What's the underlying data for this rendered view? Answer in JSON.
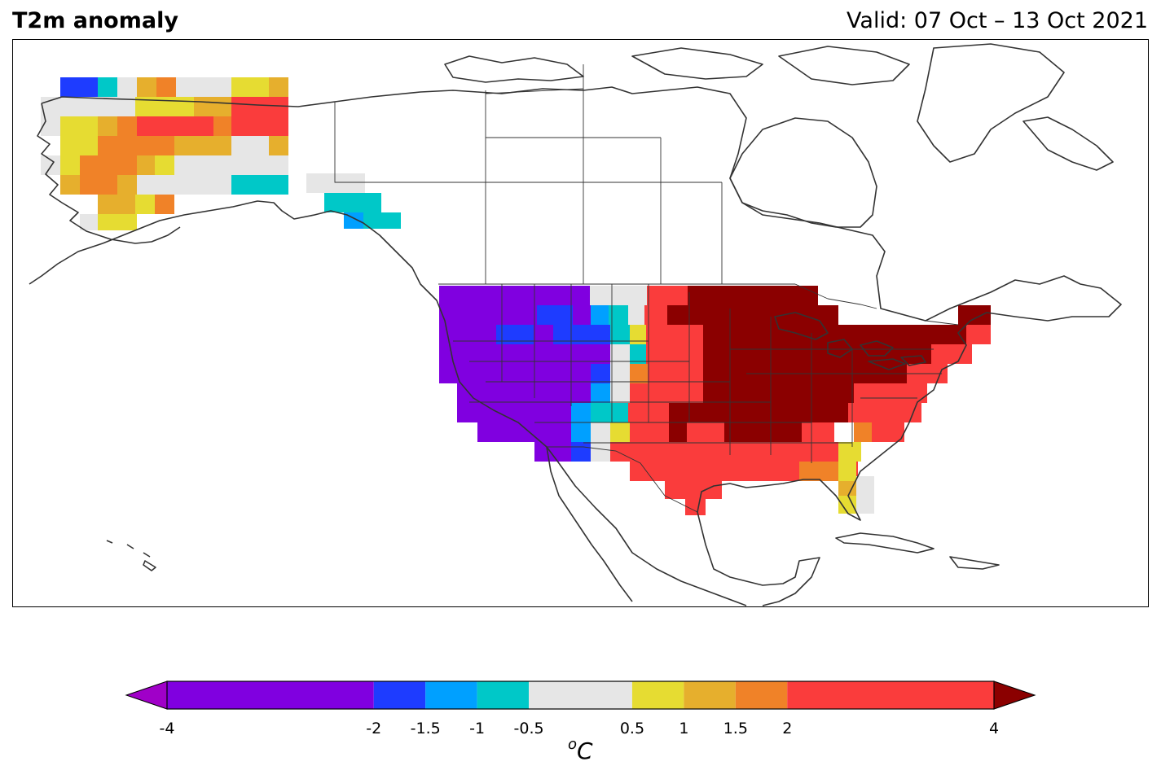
{
  "header": {
    "title": "T2m anomaly",
    "valid": "Valid: 07 Oct – 13 Oct 2021"
  },
  "colorbar": {
    "unit_sup": "o",
    "unit_main": "C",
    "ticks": [
      "-4",
      "-2",
      "-1.5",
      "-1",
      "-0.5",
      "0.5",
      "1",
      "1.5",
      "2",
      "4"
    ],
    "tick_values": [
      -4,
      -2,
      -1.5,
      -1,
      -0.5,
      0.5,
      1,
      1.5,
      2,
      4
    ],
    "bins": [
      {
        "from": -4,
        "to": -2,
        "color": "#8000e0"
      },
      {
        "from": -2,
        "to": -1.5,
        "color": "#1e3cff"
      },
      {
        "from": -1.5,
        "to": -1,
        "color": "#00a0ff"
      },
      {
        "from": -1,
        "to": -0.5,
        "color": "#00c8c8"
      },
      {
        "from": -0.5,
        "to": 0.5,
        "color": "#e6e6e6"
      },
      {
        "from": 0.5,
        "to": 1,
        "color": "#e6dc32"
      },
      {
        "from": 1,
        "to": 1.5,
        "color": "#e6af2d"
      },
      {
        "from": 1.5,
        "to": 2,
        "color": "#f08228"
      },
      {
        "from": 2,
        "to": 4,
        "color": "#fa3c3c"
      }
    ],
    "under_color": "#a000c8",
    "over_color": "#8b0000"
  },
  "map_data": {
    "extent": {
      "lon": [
        -170,
        -50
      ],
      "lat": [
        15,
        75
      ]
    },
    "regions": [
      {
        "name": "Western US",
        "anomaly_category": "< -2",
        "color": "#8000e0"
      },
      {
        "name": "Northern Rockies / Montana",
        "anomaly_category": "-2 to -1.5",
        "color": "#1e3cff"
      },
      {
        "name": "Eastern Montana / Wyoming edge",
        "anomaly_category": "-1.5 to -0.5",
        "color": "#00c8c8"
      },
      {
        "name": "Dakotas",
        "anomaly_category": "-0.5 to 0.5",
        "color": "#e6e6e6"
      },
      {
        "name": "Southern Plains / Texas",
        "anomaly_category": "2 to 4",
        "color": "#fa3c3c"
      },
      {
        "name": "Midwest / Great Lakes / Northeast",
        "anomaly_category": "> 4",
        "color": "#8b0000"
      },
      {
        "name": "Southeast",
        "anomaly_category": "2 to 4",
        "color": "#fa3c3c"
      },
      {
        "name": "Florida",
        "anomaly_category": "0.5 to 1.5",
        "color": "#e6af2d"
      },
      {
        "name": "Northern Alaska",
        "anomaly_category": "2 to 4",
        "color": "#fa3c3c"
      },
      {
        "name": "Interior Alaska",
        "anomaly_category": "1 to 2",
        "color": "#f08228"
      },
      {
        "name": "Southeast Alaska",
        "anomaly_category": "-1.5 to -0.5",
        "color": "#00c8c8"
      }
    ]
  }
}
